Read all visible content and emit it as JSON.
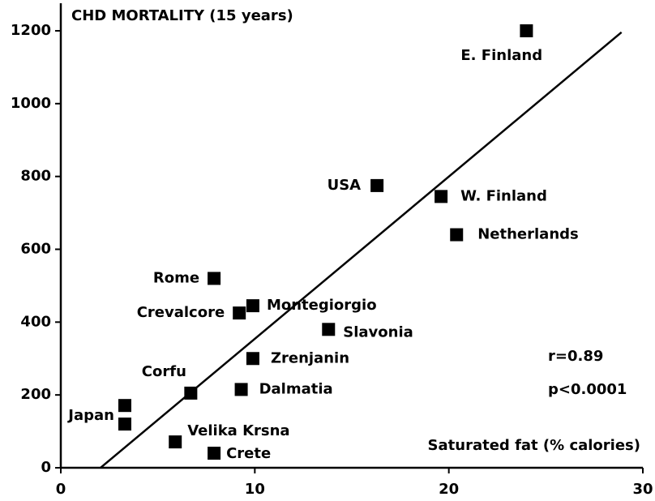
{
  "chart_data": {
    "type": "scatter",
    "title": "CHD MORTALITY (15 years)",
    "x_label": "Saturated fat (% calories)",
    "labels": [
      "E. Finland",
      "USA",
      "W. Finland",
      "Netherlands",
      "Rome",
      "Crevalcore",
      "Montegiorgio",
      "Slavonia",
      "Zrenjanin",
      "Dalmatia",
      "Corfu",
      "Japan",
      null,
      "Velika Krsna",
      "Crete"
    ],
    "x": [
      24.0,
      16.3,
      19.6,
      20.4,
      7.9,
      9.2,
      9.9,
      13.8,
      9.9,
      9.3,
      6.7,
      3.3,
      3.3,
      5.9,
      7.9
    ],
    "values": [
      1200,
      775,
      745,
      640,
      520,
      425,
      445,
      380,
      300,
      215,
      205,
      171,
      120,
      71,
      40
    ],
    "trend_line": {
      "x": [
        2.05,
        28.9
      ],
      "y": [
        0,
        1196
      ]
    },
    "annotations": [
      "r=0.89",
      "p<0.0001"
    ],
    "color": "#000000",
    "xlim": [
      0,
      30
    ],
    "ylim": [
      0,
      1200
    ],
    "xticks": [
      0,
      10,
      20,
      30
    ],
    "yticks": [
      0,
      200,
      400,
      600,
      800,
      1000,
      1200
    ],
    "grid": false
  }
}
